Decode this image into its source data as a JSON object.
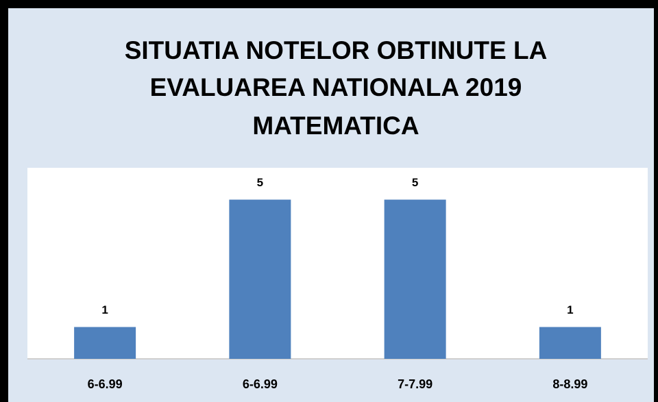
{
  "chart_data": {
    "type": "bar",
    "title": [
      "SITUATIA NOTELOR OBTINUTE LA",
      "EVALUAREA NATIONALA 2019",
      "MATEMATICA"
    ],
    "categories": [
      "6-6.99",
      "6-6.99",
      "7-7.99",
      "8-8.99"
    ],
    "values": [
      1,
      5,
      5,
      1
    ],
    "color": "#4f81bd",
    "ylim": [
      0,
      6
    ]
  }
}
